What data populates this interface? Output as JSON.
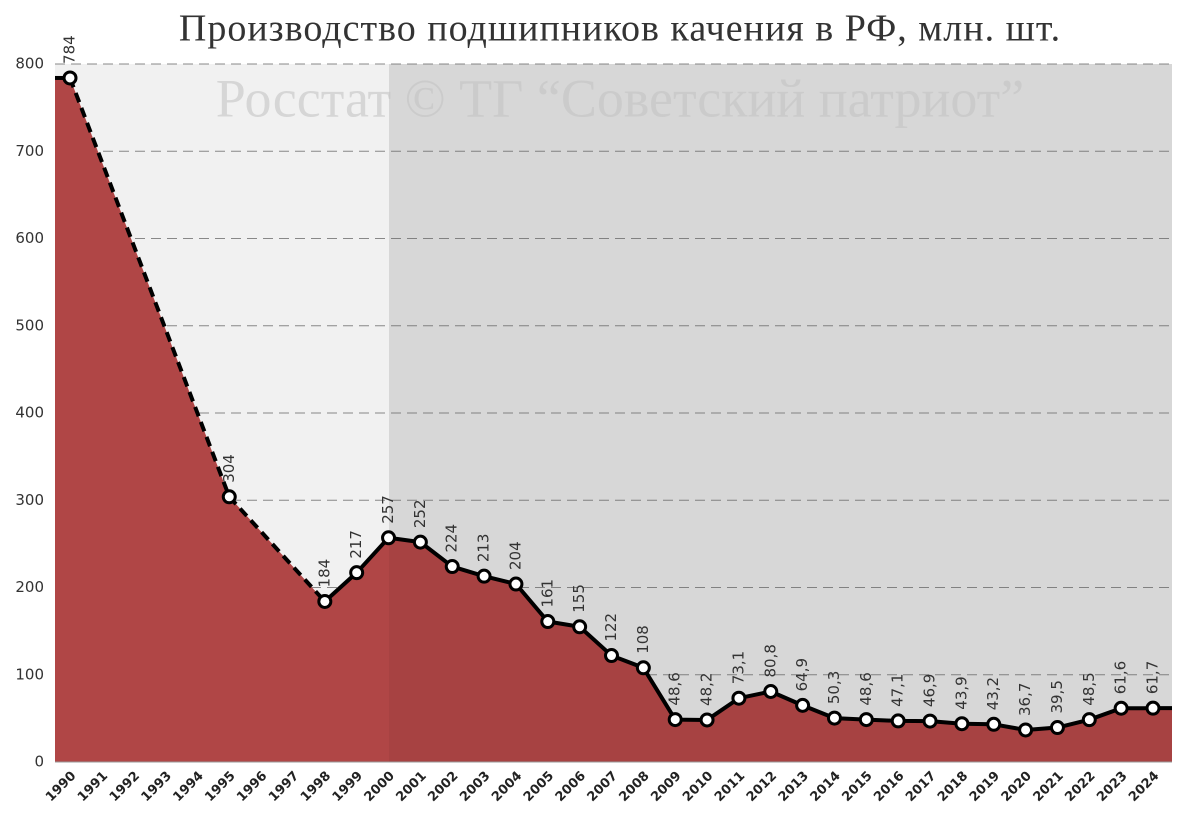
{
  "chart_data": {
    "type": "line",
    "title": "Производство подшипников качения в РФ, млн. шт.",
    "annotation": "Росстат © ТГ “Советский патриот”",
    "categories": [
      "1990",
      "1991",
      "1992",
      "1993",
      "1994",
      "1995",
      "1996",
      "1997",
      "1998",
      "1999",
      "2000",
      "2001",
      "2002",
      "2003",
      "2004",
      "2005",
      "2006",
      "2007",
      "2008",
      "2009",
      "2010",
      "2011",
      "2012",
      "2013",
      "2014",
      "2015",
      "2016",
      "2017",
      "2018",
      "2019",
      "2020",
      "2021",
      "2022",
      "2023",
      "2024"
    ],
    "values": [
      784,
      null,
      null,
      null,
      null,
      304,
      null,
      null,
      184,
      217,
      257,
      252,
      224,
      213,
      204,
      161,
      155,
      122,
      108,
      48.6,
      48.2,
      73.1,
      80.8,
      64.9,
      50.3,
      48.6,
      47.1,
      46.9,
      43.9,
      43.2,
      36.7,
      39.5,
      48.5,
      61.6,
      61.7
    ],
    "value_labels": [
      "784",
      null,
      null,
      null,
      null,
      "304",
      null,
      null,
      "184",
      "217",
      "257",
      "252",
      "224",
      "213",
      "204",
      "161",
      "155",
      "122",
      "108",
      "48,6",
      "48,2",
      "73,1",
      "80,8",
      "64,9",
      "50,3",
      "48,6",
      "47,1",
      "46,9",
      "43,9",
      "43,2",
      "36,7",
      "39,5",
      "48,5",
      "61,6",
      "61,7"
    ],
    "color": "#b04646",
    "line_color": "#000000",
    "ylim": [
      0,
      800
    ],
    "yticks": [
      0,
      100,
      200,
      300,
      400,
      500,
      600,
      700,
      800
    ],
    "grid": true
  }
}
